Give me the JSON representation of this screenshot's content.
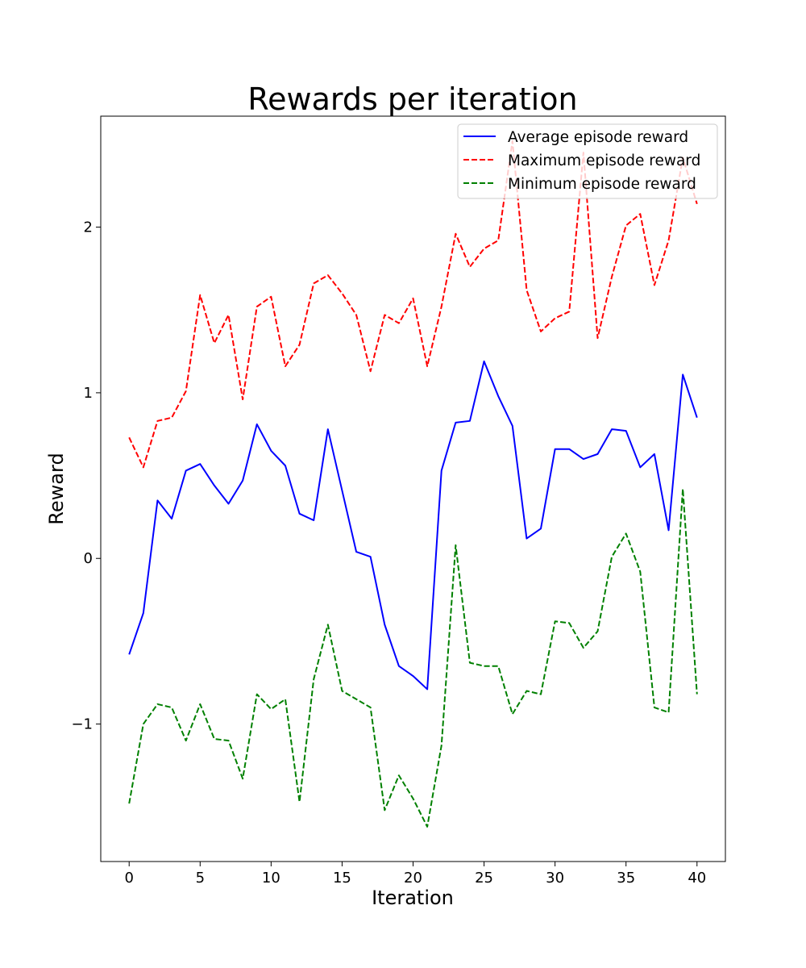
{
  "chart_data": {
    "type": "line",
    "title": "Rewards per iteration",
    "xlabel": "Iteration",
    "ylabel": "Reward",
    "xlim": [
      -2,
      42
    ],
    "ylim": [
      -1.83,
      2.67
    ],
    "xticks": [
      0,
      5,
      10,
      15,
      20,
      25,
      30,
      35,
      40
    ],
    "yticks": [
      -1,
      0,
      1,
      2
    ],
    "legend_position": "top-right",
    "grid": false,
    "x": [
      0,
      1,
      2,
      3,
      4,
      5,
      6,
      7,
      8,
      9,
      10,
      11,
      12,
      13,
      14,
      15,
      16,
      17,
      18,
      19,
      20,
      21,
      22,
      23,
      24,
      25,
      26,
      27,
      28,
      29,
      30,
      31,
      32,
      33,
      34,
      35,
      36,
      37,
      38,
      39,
      40
    ],
    "series": [
      {
        "name": "Average episode reward",
        "color": "#0000ff",
        "style": "solid",
        "values": [
          -0.58,
          -0.33,
          0.35,
          0.24,
          0.53,
          0.57,
          0.44,
          0.33,
          0.47,
          0.81,
          0.65,
          0.56,
          0.27,
          0.23,
          0.78,
          0.41,
          0.04,
          0.01,
          -0.4,
          -0.65,
          -0.71,
          -0.79,
          0.53,
          0.82,
          0.83,
          1.19,
          0.98,
          0.8,
          0.12,
          0.18,
          0.66,
          0.66,
          0.6,
          0.63,
          0.78,
          0.77,
          0.55,
          0.63,
          0.17,
          1.11,
          0.85
        ]
      },
      {
        "name": "Maximum episode reward",
        "color": "#ff0000",
        "style": "dashed",
        "values": [
          0.73,
          0.55,
          0.83,
          0.85,
          1.01,
          1.59,
          1.3,
          1.47,
          0.96,
          1.52,
          1.58,
          1.16,
          1.29,
          1.66,
          1.71,
          1.6,
          1.47,
          1.13,
          1.47,
          1.42,
          1.57,
          1.16,
          1.52,
          1.96,
          1.76,
          1.87,
          1.92,
          2.52,
          1.62,
          1.37,
          1.45,
          1.49,
          2.45,
          1.33,
          1.7,
          2.01,
          2.08,
          1.65,
          1.92,
          2.42,
          2.14
        ]
      },
      {
        "name": "Minimum episode reward",
        "color": "#008000",
        "style": "dashed",
        "values": [
          -1.48,
          -1.0,
          -0.88,
          -0.9,
          -1.1,
          -0.88,
          -1.09,
          -1.1,
          -1.33,
          -0.82,
          -0.91,
          -0.85,
          -1.47,
          -0.73,
          -0.4,
          -0.8,
          -0.85,
          -0.9,
          -1.52,
          -1.31,
          -1.45,
          -1.62,
          -1.13,
          0.08,
          -0.63,
          -0.65,
          -0.65,
          -0.94,
          -0.8,
          -0.82,
          -0.38,
          -0.39,
          -0.54,
          -0.44,
          0.01,
          0.15,
          -0.08,
          -0.9,
          -0.93,
          0.42,
          -0.82
        ]
      }
    ]
  }
}
